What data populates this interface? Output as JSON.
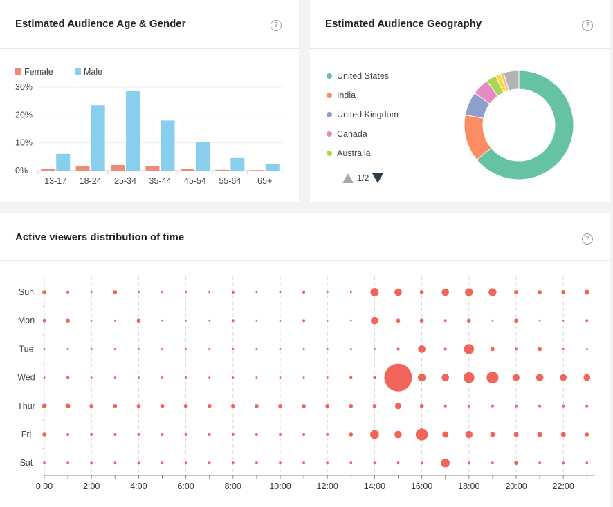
{
  "age_card": {
    "title": "Estimated Audience Age & Gender",
    "help_icon": "question-circle-icon"
  },
  "geo_card": {
    "title": "Estimated Audience Geography",
    "help_icon": "question-circle-icon",
    "pager": "1/2"
  },
  "time_card": {
    "title": "Active viewers distribution of time",
    "help_icon": "question-circle-icon"
  },
  "chart_data": [
    {
      "type": "bar",
      "categories": [
        "13-17",
        "18-24",
        "25-34",
        "35-44",
        "45-54",
        "55-64",
        "65+"
      ],
      "series": [
        {
          "name": "Female",
          "color": "#ee8a78",
          "values": [
            0.5,
            1.5,
            2,
            1.5,
            0.7,
            0.3,
            0.2
          ]
        },
        {
          "name": "Male",
          "color": "#87cfec",
          "values": [
            6,
            23.5,
            28.5,
            18,
            10.2,
            4.5,
            2.3
          ]
        }
      ],
      "yticks": [
        "0%",
        "10%",
        "20%",
        "30%"
      ],
      "ylim": [
        0,
        30
      ],
      "grid": true,
      "legend": "top-left"
    },
    {
      "type": "pie",
      "donut": true,
      "slices": [
        {
          "name": "United States",
          "color": "#66c2a5",
          "value": 64
        },
        {
          "name": "India",
          "color": "#fc8d62",
          "value": 14
        },
        {
          "name": "United Kingdom",
          "color": "#8da0cb",
          "value": 7
        },
        {
          "name": "Canada",
          "color": "#e78ac3",
          "value": 5
        },
        {
          "name": "Australia",
          "color": "#a6d854",
          "value": 3
        },
        {
          "name": "",
          "color": "#ffd92f",
          "value": 1.5
        },
        {
          "name": "",
          "color": "#e5c494",
          "value": 1
        },
        {
          "name": "",
          "color": "#b3b3b3",
          "value": 4.5
        }
      ],
      "legend": "left"
    },
    {
      "type": "scatter",
      "bubble": true,
      "color": "#f0645a",
      "days": [
        "Sun",
        "Mon",
        "Tue",
        "Wed",
        "Thur",
        "Fri",
        "Sat"
      ],
      "hours": [
        0,
        1,
        2,
        3,
        4,
        5,
        6,
        7,
        8,
        9,
        10,
        11,
        12,
        13,
        14,
        15,
        16,
        17,
        18,
        19,
        20,
        21,
        22,
        23
      ],
      "xticks": [
        "0:00",
        "2:00",
        "4:00",
        "6:00",
        "8:00",
        "10:00",
        "12:00",
        "14:00",
        "16:00",
        "18:00",
        "20:00",
        "22:00"
      ],
      "values": [
        [
          2,
          1,
          0.5,
          2,
          0.5,
          0.5,
          0.5,
          0.5,
          1,
          0.5,
          0.5,
          1,
          0.5,
          0.5,
          9,
          7,
          2,
          7,
          8,
          8,
          2,
          2,
          2,
          3
        ],
        [
          1.5,
          2,
          0.5,
          0.5,
          2,
          0.5,
          0.5,
          0.5,
          1,
          0.5,
          0.5,
          1,
          0.5,
          0.5,
          7,
          2,
          2,
          1,
          2,
          0.5,
          2,
          0.5,
          0.5,
          1
        ],
        [
          0.5,
          0.5,
          0.5,
          0.5,
          0.5,
          0.5,
          0.5,
          0.5,
          0.5,
          0.5,
          0.5,
          0.5,
          0.5,
          0.5,
          0.5,
          1,
          7,
          1,
          13,
          2,
          1,
          2,
          0.5,
          0.5
        ],
        [
          0.5,
          1,
          0.5,
          0.5,
          0.5,
          0.5,
          0.5,
          0.5,
          0.5,
          0.5,
          0.5,
          0.5,
          0.5,
          1,
          1,
          100,
          8,
          7,
          15,
          18,
          6,
          7,
          6,
          6
        ],
        [
          3,
          3,
          2,
          2,
          2,
          2,
          2,
          2,
          2,
          2,
          2,
          2,
          2,
          2,
          2,
          5,
          2,
          1,
          1,
          1,
          1,
          1,
          1,
          1
        ],
        [
          2,
          1,
          1,
          1,
          1,
          1,
          1,
          1,
          1,
          1,
          1,
          1,
          1,
          2,
          10,
          7,
          19,
          5,
          7,
          3,
          3,
          3,
          3,
          2
        ],
        [
          1,
          1,
          1,
          1,
          1,
          1,
          1,
          1,
          1,
          1,
          1,
          1,
          1,
          1,
          1,
          1,
          1,
          10,
          1,
          1,
          2,
          1,
          1,
          1
        ]
      ]
    }
  ]
}
